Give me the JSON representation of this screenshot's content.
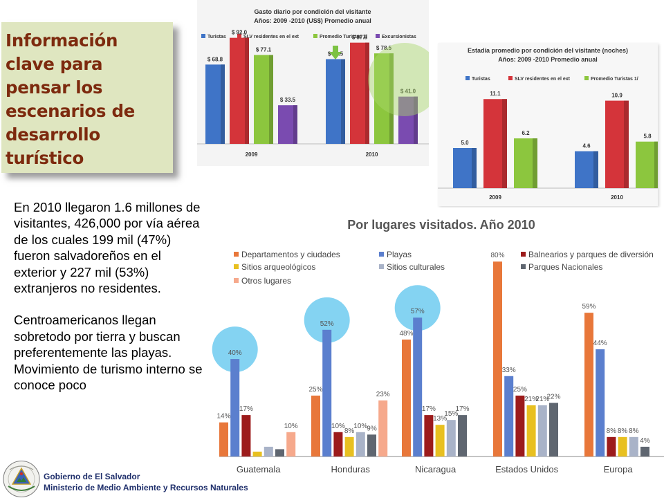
{
  "key_box": {
    "title": "Información clave para pensar los escenarios de desarrollo turístico"
  },
  "body": {
    "paragraph1": "En 2010 llegaron 1.6 millones de visitantes, 426,000 por vía aérea de los cuales 199 mil (47%) fueron salvadoreños en el exterior y 227 mil (53%) extranjeros no residentes.",
    "paragraph2": "Centroamericanos llegan sobretodo por tierra y buscan preferentemente las playas.  Movimiento de turismo interno se conoce poco"
  },
  "footer": {
    "line1": "Gobierno de El Salvador",
    "line2": "Ministerio de Medio Ambiente y Recursos Naturales",
    "seal_text": "REPUBLICA DE EL SALVADOR EN LA AMERICA CENTRAL"
  },
  "chart_data": [
    {
      "type": "bar",
      "title": "Gasto diario por condición del visitante",
      "subtitle": "Años: 2009 -2010 (US$) Promedio anual",
      "categories": [
        "2009",
        "2010"
      ],
      "series": [
        {
          "name": "Turistas",
          "values": [
            68.8,
            73.5
          ],
          "labels": [
            "$ 68.8",
            "$ 73.5"
          ],
          "color": "#3f74c7"
        },
        {
          "name": "SLV residentes en el ext",
          "values": [
            92.0,
            87.8
          ],
          "labels": [
            "$ 92.0",
            "$ 87.8"
          ],
          "color": "#d4343a"
        },
        {
          "name": "Promedio Turistas 1/",
          "values": [
            77.1,
            78.5
          ],
          "labels": [
            "$ 77.1",
            "$ 78.5"
          ],
          "color": "#8cc63e"
        },
        {
          "name": "Excursionistas",
          "values": [
            33.5,
            41.0
          ],
          "labels": [
            "$ 33.5",
            "$ 41.0"
          ],
          "color": "#7a4bb0"
        }
      ],
      "ylim": [
        0,
        105
      ],
      "legend": "top",
      "annotations": [
        "green arrow over 2010 Turistas",
        "green circle around 2010 Promedio Turistas and Excursionistas"
      ]
    },
    {
      "type": "bar",
      "title": "Estadía promedio por condición del visitante (noches)",
      "subtitle": "Años: 2009 -2010  Promedio anual",
      "categories": [
        "2009",
        "2010"
      ],
      "series": [
        {
          "name": "Turistas",
          "values": [
            5.0,
            4.6
          ],
          "labels": [
            "5.0",
            "4.6"
          ],
          "color": "#3f74c7"
        },
        {
          "name": "SLV residentes en el ext",
          "values": [
            11.1,
            10.9
          ],
          "labels": [
            "11.1",
            "10.9"
          ],
          "color": "#d4343a"
        },
        {
          "name": "Promedio Turistas 1/",
          "values": [
            6.2,
            5.8
          ],
          "labels": [
            "6.2",
            "5.8"
          ],
          "color": "#8cc63e"
        }
      ],
      "ylim": [
        0,
        12.5
      ],
      "legend": "top"
    },
    {
      "type": "bar",
      "title": "Por lugares visitados. Año 2010",
      "categories": [
        "Guatemala",
        "Honduras",
        "Nicaragua",
        "Estados Unidos",
        "Europa"
      ],
      "series": [
        {
          "name": "Departamentos y ciudades",
          "values": [
            14,
            25,
            48,
            80,
            59
          ],
          "color": "#e8773a"
        },
        {
          "name": "Playas",
          "values": [
            40,
            52,
            57,
            33,
            44
          ],
          "color": "#5b7fce"
        },
        {
          "name": "Balnearios y parques de diversión",
          "values": [
            17,
            10,
            17,
            25,
            8
          ],
          "color": "#9c1b1b"
        },
        {
          "name": "Sitios arqueológicos",
          "values": [
            2,
            8,
            13,
            21,
            8
          ],
          "color": "#e8c020"
        },
        {
          "name": "Sitios culturales",
          "values": [
            4,
            10,
            15,
            21,
            8
          ],
          "color": "#a9b3c8"
        },
        {
          "name": "Parques Nacionales",
          "values": [
            3,
            9,
            17,
            22,
            4
          ],
          "color": "#5f6670"
        },
        {
          "name": "Otros lugares",
          "values": [
            10,
            23,
            null,
            null,
            null
          ],
          "color": "#f6a98c"
        }
      ],
      "labels": [
        [
          "14%",
          "40%",
          "17%",
          null,
          null,
          null,
          "10%"
        ],
        [
          "25%",
          "52%",
          "10%",
          "8%",
          "10%",
          "9%",
          "23%"
        ],
        [
          "48%",
          "57%",
          "17%",
          "13%",
          "15%",
          "17%",
          null
        ],
        [
          "80%",
          "33%",
          "25%",
          "21%",
          "21%",
          "22%",
          null
        ],
        [
          "59%",
          "44%",
          "8%",
          "8%",
          "8%",
          "4%",
          null
        ]
      ],
      "highlighted": [
        "Guatemala Playas",
        "Honduras Playas",
        "Nicaragua Playas"
      ],
      "ylim": [
        0,
        88
      ],
      "legend": "top"
    }
  ]
}
